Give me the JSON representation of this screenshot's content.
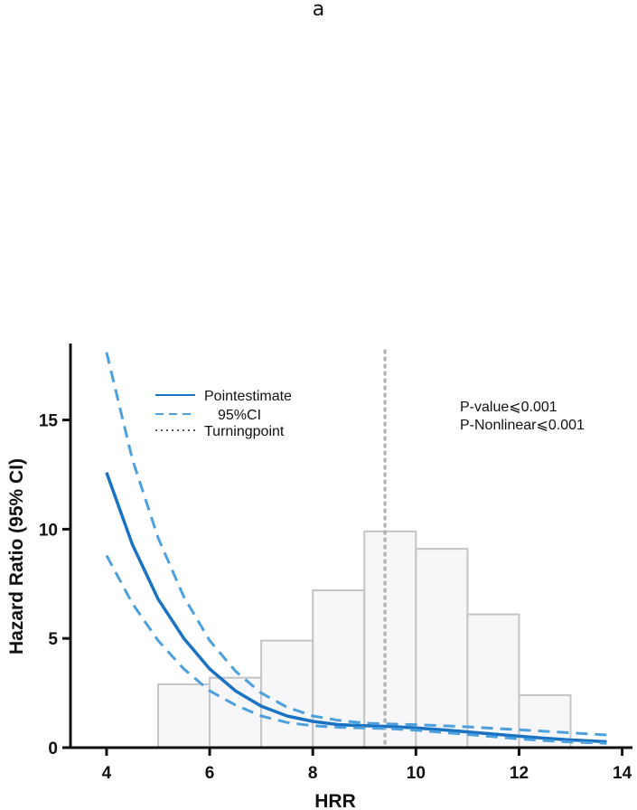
{
  "panel_label": "a",
  "chart_data": {
    "type": "line",
    "xlabel": "HRR",
    "ylabel": "Hazard Ratio (95% CI)",
    "xlim": [
      3.3,
      14.2
    ],
    "ylim": [
      0,
      18.5
    ],
    "x_ticks": [
      4,
      6,
      8,
      10,
      12,
      14
    ],
    "y_ticks": [
      0,
      5,
      10,
      15
    ],
    "histogram": {
      "bins": [
        [
          5,
          6
        ],
        [
          6,
          7
        ],
        [
          7,
          8
        ],
        [
          8,
          9
        ],
        [
          9,
          10
        ],
        [
          10,
          11
        ],
        [
          11,
          12
        ],
        [
          12,
          13
        ]
      ],
      "heights": [
        2.9,
        3.2,
        4.9,
        7.2,
        9.9,
        9.1,
        6.1,
        2.4
      ],
      "fill": "#f7f6f8",
      "stroke": "#c4c4c4"
    },
    "series": [
      {
        "name": "Pointestimate",
        "style": "solid",
        "color": "#1a73c2",
        "x": [
          4.0,
          4.5,
          5.0,
          5.5,
          6.0,
          6.5,
          7.0,
          7.5,
          8.0,
          8.5,
          9.0,
          9.5,
          10.0,
          10.5,
          11.0,
          11.5,
          12.0,
          12.5,
          13.0,
          13.7
        ],
        "y": [
          12.6,
          9.3,
          6.8,
          5.0,
          3.6,
          2.6,
          1.9,
          1.45,
          1.2,
          1.05,
          1.0,
          0.97,
          0.9,
          0.82,
          0.72,
          0.62,
          0.52,
          0.43,
          0.35,
          0.27
        ]
      },
      {
        "name": "95%CI",
        "style": "dashed",
        "color": "#4da0de",
        "x": [
          4.0,
          4.5,
          5.0,
          5.5,
          6.0,
          6.5,
          7.0,
          7.5,
          8.0,
          8.5,
          9.0,
          9.5,
          10.0,
          10.5,
          11.0,
          11.5,
          12.0,
          12.5,
          13.0,
          13.7
        ],
        "y": [
          18.1,
          13.2,
          9.6,
          6.9,
          4.9,
          3.5,
          2.5,
          1.85,
          1.45,
          1.25,
          1.12,
          1.08,
          1.05,
          1.0,
          0.95,
          0.88,
          0.82,
          0.75,
          0.68,
          0.58
        ]
      },
      {
        "name": "95%CI lower",
        "style": "dashed",
        "color": "#4da0de",
        "x": [
          4.0,
          4.5,
          5.0,
          5.5,
          6.0,
          6.5,
          7.0,
          7.5,
          8.0,
          8.5,
          9.0,
          9.5,
          10.0,
          10.5,
          11.0,
          11.5,
          12.0,
          12.5,
          13.0,
          13.7
        ],
        "y": [
          8.8,
          6.6,
          4.9,
          3.6,
          2.6,
          1.95,
          1.45,
          1.15,
          1.0,
          0.93,
          0.9,
          0.87,
          0.8,
          0.7,
          0.6,
          0.5,
          0.4,
          0.32,
          0.26,
          0.2
        ]
      }
    ],
    "turning_point": {
      "name": "Turningpoint",
      "x": 9.4,
      "color": "#b5b5b5"
    },
    "legend": {
      "placement": "top-left",
      "entries": [
        {
          "label": "Pointestimate",
          "style": "solid",
          "color": "#1a73c2"
        },
        {
          "label": "95%CI",
          "style": "dashed",
          "color": "#4da0de"
        },
        {
          "label": "Turningpoint",
          "style": "dotted",
          "color": "#555555"
        }
      ]
    },
    "annotations": [
      "P-value⩽0.001",
      "P-Nonlinear⩽0.001"
    ]
  }
}
